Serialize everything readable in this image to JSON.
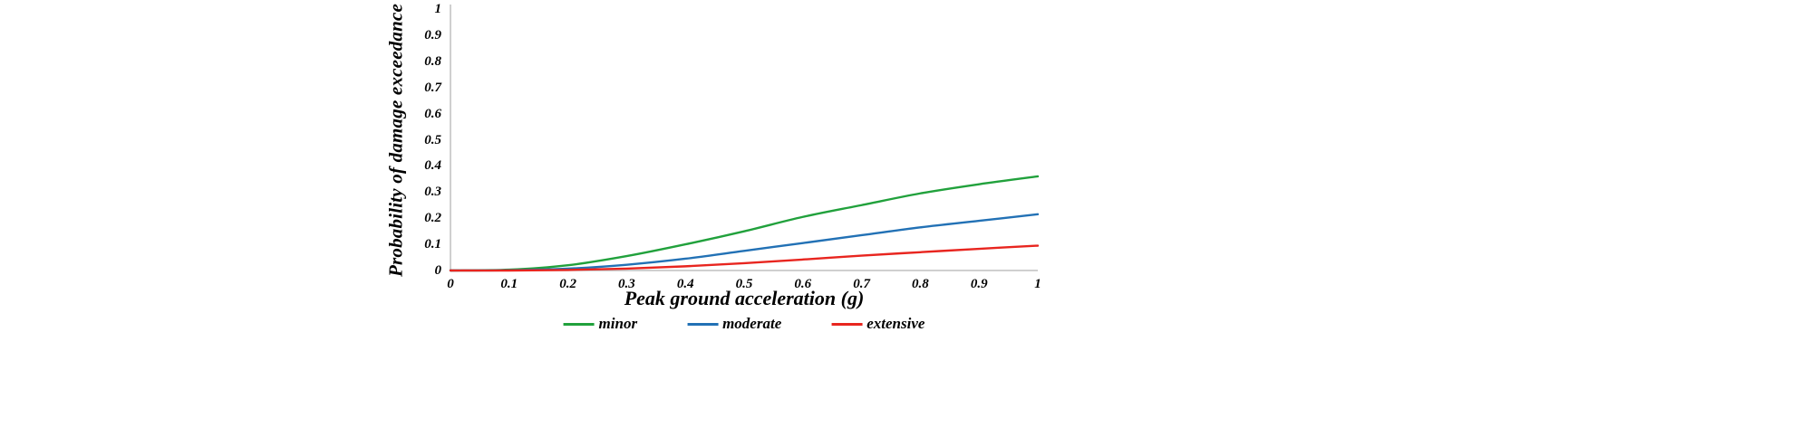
{
  "page": {
    "background": "#ffffff"
  },
  "chart_data": {
    "type": "line",
    "title": "",
    "xlabel": "Peak ground acceleration (g)",
    "ylabel": "Probability of damage exceedance",
    "xlim": [
      0,
      1
    ],
    "ylim": [
      0,
      1
    ],
    "grid": false,
    "legend_position": "bottom",
    "axis_color": "#bfbfbf",
    "x_ticks": [
      "0",
      "0.1",
      "0.2",
      "0.3",
      "0.4",
      "0.5",
      "0.6",
      "0.7",
      "0.8",
      "0.9",
      "1"
    ],
    "y_ticks": [
      "1",
      "0.9",
      "0.8",
      "0.7",
      "0.6",
      "0.5",
      "0.4",
      "0.3",
      "0.2",
      "0.1",
      "0"
    ],
    "x": [
      0,
      0.1,
      0.2,
      0.3,
      0.4,
      0.5,
      0.6,
      0.7,
      0.8,
      0.9,
      1.0
    ],
    "series": [
      {
        "name": "minor",
        "color": "#21a13c",
        "values": [
          0,
          0.003,
          0.02,
          0.055,
          0.1,
          0.15,
          0.205,
          0.25,
          0.295,
          0.33,
          0.36
        ]
      },
      {
        "name": "moderate",
        "color": "#2271b5",
        "values": [
          0,
          0.001,
          0.007,
          0.022,
          0.045,
          0.075,
          0.105,
          0.135,
          0.165,
          0.19,
          0.215
        ]
      },
      {
        "name": "extensive",
        "color": "#e8251f",
        "values": [
          0,
          0.0,
          0.002,
          0.007,
          0.016,
          0.028,
          0.042,
          0.057,
          0.07,
          0.083,
          0.095
        ]
      }
    ]
  }
}
